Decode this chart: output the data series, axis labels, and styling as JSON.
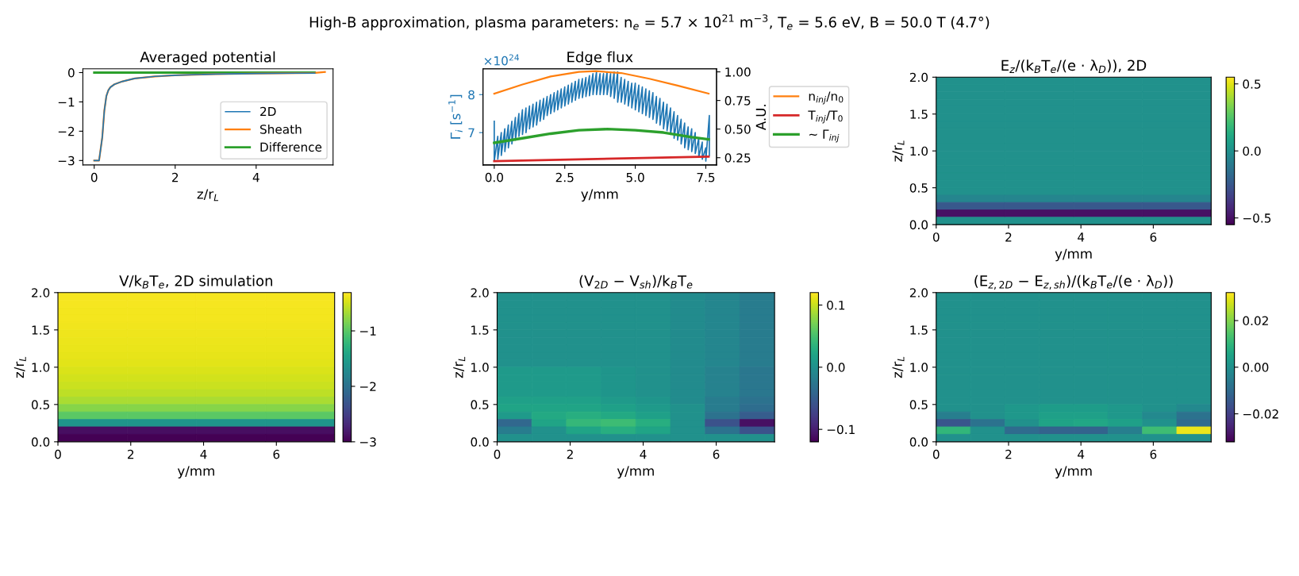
{
  "chart_data": [
    {
      "type": "line",
      "subtitle": "High-B approximation, plasma parameters: n$_{e}$ = 5.7 × 10$^{21}$ m$^{−3}$, T$_{e}$ = 5.6 eV, B = 50.0 T (4.7°)",
      "title": "Averaged potential",
      "xlabel": "z/r$_{L}$",
      "xlim": [
        -0.28,
        5.9
      ],
      "xticks": [
        0,
        2,
        4
      ],
      "ylim": [
        -3.15,
        0.13
      ],
      "yticks": [
        {
          "value": -3,
          "label": "−3"
        },
        {
          "value": -2,
          "label": "−2"
        },
        {
          "value": -1,
          "label": "−1"
        },
        0
      ],
      "legend": "bottom right",
      "grid": false,
      "series": [
        {
          "name": "2D",
          "color": "#1f77b4",
          "x": [
            0,
            0.12,
            0.2,
            0.25,
            0.3,
            0.35,
            0.4,
            0.5,
            0.7,
            1.0,
            1.5,
            2,
            3,
            4,
            5,
            5.45
          ],
          "values": [
            -3,
            -3,
            -2.2,
            -1.3,
            -0.8,
            -0.6,
            -0.5,
            -0.4,
            -0.3,
            -0.2,
            -0.13,
            -0.09,
            -0.05,
            -0.03,
            -0.02,
            -0.02
          ]
        },
        {
          "name": "Sheath",
          "color": "#ff7f0e",
          "x": [
            0,
            0.12,
            0.2,
            0.25,
            0.3,
            0.35,
            0.4,
            0.5,
            0.7,
            1.0,
            1.5,
            2,
            3,
            4,
            5,
            5.45,
            5.7
          ],
          "values": [
            -3,
            -3,
            -2.2,
            -1.3,
            -0.8,
            -0.6,
            -0.5,
            -0.4,
            -0.3,
            -0.2,
            -0.13,
            -0.09,
            -0.05,
            -0.03,
            -0.02,
            -0.01,
            0.02
          ]
        },
        {
          "name": "Difference",
          "color": "#2ca02c",
          "x": [
            0,
            1,
            2,
            3,
            4,
            5,
            5.45
          ],
          "values": [
            0,
            0,
            0,
            0,
            0,
            0,
            0
          ]
        }
      ]
    },
    {
      "type": "line",
      "title": "Edge flux",
      "xlabel": "y/mm",
      "ylabel": "Γ$_{i}$ [s$^{−1}$]",
      "y2label": "A.U.",
      "annotations": [
        "×10$^{24}$"
      ],
      "xlim": [
        -0.4,
        7.88
      ],
      "xticks": [
        {
          "value": 0,
          "label": "0.0"
        },
        {
          "value": 2.5,
          "label": "2.5"
        },
        {
          "value": 5,
          "label": "5.0"
        },
        {
          "value": 7.5,
          "label": "7.5"
        }
      ],
      "ylim": [
        6.15,
        8.68
      ],
      "yticks": [
        7,
        8
      ],
      "y2lim": [
        0.187,
        1.027
      ],
      "y2ticks": [
        {
          "value": 0.25,
          "label": "0.25"
        },
        {
          "value": 0.5,
          "label": "0.50"
        },
        {
          "value": 0.75,
          "label": "0.75"
        },
        {
          "value": 1.0,
          "label": "1.00"
        }
      ],
      "legend": "right",
      "grid": false,
      "series": [
        {
          "color": "#1f77b4",
          "axis": "y",
          "x": [
            0,
            0,
            0.125,
            0.125,
            0.25,
            0.25,
            0.375,
            0.375,
            0.5,
            0.5,
            0.625,
            0.625,
            0.75,
            0.75,
            0.875,
            0.875,
            1.0,
            1.0,
            1.125,
            1.125,
            1.25,
            1.25,
            1.375,
            1.375,
            1.5,
            1.5,
            1.625,
            1.625,
            1.75,
            1.75,
            1.875,
            1.875,
            2.0,
            2.0,
            2.125,
            2.125,
            2.25,
            2.25,
            2.375,
            2.375,
            2.5,
            2.5,
            2.625,
            2.625,
            2.75,
            2.75,
            2.875,
            2.875,
            3.0,
            3.0,
            3.125,
            3.125,
            3.25,
            3.25,
            3.375,
            3.375,
            3.5,
            3.5,
            3.625,
            3.625,
            3.75,
            3.75,
            3.875,
            3.875,
            4.0,
            4.0,
            4.125,
            4.125,
            4.25,
            4.25,
            4.375,
            4.375,
            4.5,
            4.5,
            4.625,
            4.625,
            4.75,
            4.75,
            4.875,
            4.875,
            5.0,
            5.0,
            5.125,
            5.125,
            5.25,
            5.25,
            5.375,
            5.375,
            5.5,
            5.5,
            5.625,
            5.625,
            5.75,
            5.75,
            5.875,
            5.875,
            6.0,
            6.0,
            6.125,
            6.125,
            6.25,
            6.25,
            6.375,
            6.375,
            6.5,
            6.5,
            6.625,
            6.625,
            6.75,
            6.75,
            6.875,
            6.875,
            7.0,
            7.0,
            7.125,
            7.125,
            7.25,
            7.25,
            7.375,
            7.375,
            7.5,
            7.5,
            7.625,
            7.625
          ],
          "values": [
            7.3,
            6.25,
            6.9,
            6.3,
            7.0,
            6.4,
            7.1,
            6.5,
            7.2,
            6.6,
            7.3,
            6.7,
            7.4,
            6.8,
            7.5,
            6.9,
            7.6,
            6.95,
            7.65,
            7.0,
            7.7,
            7.1,
            7.75,
            7.15,
            7.8,
            7.2,
            7.85,
            7.3,
            7.9,
            7.35,
            7.95,
            7.45,
            8.0,
            7.5,
            8.05,
            7.55,
            8.1,
            7.6,
            8.15,
            7.65,
            8.2,
            7.7,
            8.25,
            7.75,
            8.3,
            7.8,
            8.35,
            7.85,
            8.4,
            7.9,
            8.42,
            7.92,
            8.45,
            7.95,
            8.5,
            7.97,
            8.55,
            8.0,
            8.6,
            8.0,
            8.55,
            8.0,
            8.55,
            8.0,
            8.6,
            8.0,
            8.55,
            7.95,
            8.6,
            7.9,
            8.6,
            7.8,
            8.45,
            7.8,
            8.4,
            7.75,
            8.35,
            7.7,
            8.3,
            7.65,
            8.3,
            7.6,
            8.25,
            7.55,
            8.2,
            7.5,
            8.15,
            7.45,
            8.1,
            7.4,
            8.05,
            7.35,
            7.95,
            7.25,
            7.9,
            7.2,
            7.8,
            7.1,
            7.75,
            7.05,
            7.65,
            6.95,
            7.55,
            6.85,
            7.45,
            6.8,
            7.35,
            6.7,
            7.25,
            6.6,
            7.15,
            6.55,
            7.1,
            6.5,
            7.0,
            6.45,
            6.85,
            6.35,
            6.75,
            6.3,
            6.6,
            6.25,
            7.45,
            6.4
          ]
        },
        {
          "name": "n$_{inj}$/n$_{0}$",
          "color": "#ff7f0e",
          "axis": "y2",
          "x": [
            0,
            1,
            2,
            3,
            3.6,
            4.5,
            5.5,
            6.5,
            7.6
          ],
          "values": [
            0.81,
            0.89,
            0.96,
            1.0,
            1.006,
            0.99,
            0.94,
            0.88,
            0.81
          ]
        },
        {
          "name": "T$_{inj}$/T$_{0}$",
          "color": "#d62728",
          "axis": "y2",
          "x": [
            0,
            7.6
          ],
          "values": [
            0.22,
            0.26
          ]
        },
        {
          "name": "∼ Γ$_{inj}$",
          "color": "#2ca02c",
          "axis": "y2",
          "x": [
            0,
            1,
            2,
            3,
            4,
            5,
            6,
            7,
            7.6
          ],
          "values": [
            0.38,
            0.42,
            0.46,
            0.49,
            0.5,
            0.49,
            0.47,
            0.43,
            0.41
          ]
        }
      ]
    },
    {
      "type": "heatmap",
      "title": "E$_{z}$/(k$_{B}$T$_{e}$/(e · λ$_{D}$)), 2D",
      "xlabel": "y/mm",
      "ylabel": "z/r$_{L}$",
      "x": [
        0.95,
        2.85,
        4.75,
        6.65
      ],
      "xlim": [
        0,
        7.6
      ],
      "xticks": [
        0,
        2,
        4,
        6
      ],
      "ylim": [
        0,
        2
      ],
      "yticks": [
        {
          "value": 0,
          "label": "0.0"
        },
        {
          "value": 0.5,
          "label": "0.5"
        },
        {
          "value": 1,
          "label": "1.0"
        },
        {
          "value": 1.5,
          "label": "1.5"
        },
        {
          "value": 2,
          "label": "2.0"
        }
      ],
      "clim": [
        -0.55,
        0.55
      ],
      "cticks": [
        {
          "value": -0.5,
          "label": "−0.5"
        },
        {
          "value": 0,
          "label": "0.0"
        },
        {
          "value": 0.5,
          "label": "0.5"
        }
      ],
      "cells": [
        [
          0,
          0,
          0,
          0
        ],
        [
          0,
          0,
          0,
          0
        ],
        [
          0,
          0,
          0,
          0
        ],
        [
          0,
          0,
          0,
          0
        ],
        [
          0,
          0,
          0,
          0
        ],
        [
          0,
          0,
          0,
          0
        ],
        [
          0,
          0,
          0,
          0
        ],
        [
          0,
          0,
          0,
          0
        ],
        [
          0,
          0,
          0,
          0
        ],
        [
          0,
          0,
          0,
          0
        ],
        [
          0,
          0,
          0,
          0
        ],
        [
          0,
          0,
          0,
          0
        ],
        [
          0,
          0,
          0,
          0
        ],
        [
          0,
          0,
          0,
          0
        ],
        [
          0,
          0,
          0,
          0
        ],
        [
          0,
          0,
          0,
          0
        ],
        [
          -0.05,
          -0.05,
          -0.05,
          -0.05
        ],
        [
          -0.25,
          -0.25,
          -0.25,
          -0.25
        ],
        [
          -0.5,
          -0.5,
          -0.5,
          -0.5
        ],
        [
          0,
          0,
          0,
          0
        ]
      ]
    },
    {
      "type": "heatmap",
      "title": "V/k$_{B}$T$_{e}$, 2D simulation",
      "xlabel": "y/mm",
      "ylabel": "z/r$_{L}$",
      "x": [
        0.95,
        2.85,
        4.75,
        6.65
      ],
      "xlim": [
        0,
        7.6
      ],
      "xticks": [
        0,
        2,
        4,
        6
      ],
      "ylim": [
        0,
        2
      ],
      "yticks": [
        {
          "value": 0,
          "label": "0.0"
        },
        {
          "value": 0.5,
          "label": "0.5"
        },
        {
          "value": 1,
          "label": "1.0"
        },
        {
          "value": 1.5,
          "label": "1.5"
        },
        {
          "value": 2,
          "label": "2.0"
        }
      ],
      "clim": [
        -3,
        -0.31
      ],
      "cticks": [
        {
          "value": -3,
          "label": "−3"
        },
        {
          "value": -2,
          "label": "−2"
        },
        {
          "value": -1,
          "label": "−1"
        }
      ],
      "cells": [
        [
          -0.35,
          -0.35,
          -0.35,
          -0.35
        ],
        [
          -0.35,
          -0.35,
          -0.35,
          -0.35
        ],
        [
          -0.36,
          -0.36,
          -0.36,
          -0.36
        ],
        [
          -0.36,
          -0.36,
          -0.36,
          -0.36
        ],
        [
          -0.37,
          -0.37,
          -0.37,
          -0.37
        ],
        [
          -0.38,
          -0.38,
          -0.38,
          -0.38
        ],
        [
          -0.39,
          -0.39,
          -0.39,
          -0.39
        ],
        [
          -0.4,
          -0.4,
          -0.4,
          -0.4
        ],
        [
          -0.41,
          -0.41,
          -0.41,
          -0.41
        ],
        [
          -0.43,
          -0.43,
          -0.43,
          -0.43
        ],
        [
          -0.46,
          -0.46,
          -0.46,
          -0.46
        ],
        [
          -0.49,
          -0.49,
          -0.49,
          -0.49
        ],
        [
          -0.53,
          -0.53,
          -0.53,
          -0.53
        ],
        [
          -0.58,
          -0.58,
          -0.58,
          -0.58
        ],
        [
          -0.65,
          -0.65,
          -0.65,
          -0.65
        ],
        [
          -0.8,
          -0.8,
          -0.8,
          -0.8
        ],
        [
          -1.0,
          -1.0,
          -1.0,
          -1.0
        ],
        [
          -1.6,
          -1.6,
          -1.6,
          -1.6
        ],
        [
          -2.9,
          -2.9,
          -2.9,
          -2.9
        ],
        [
          -3,
          -3,
          -3,
          -3
        ]
      ]
    },
    {
      "type": "heatmap",
      "title": "(V$_{2D}$ − V$_{sh}$)/k$_{B}$T$_{e}$",
      "xlabel": "y/mm",
      "ylabel": "z/r$_{L}$",
      "x": [
        0.475,
        1.425,
        2.375,
        3.325,
        4.275,
        5.225,
        6.175,
        7.125
      ],
      "xlim": [
        0,
        7.6
      ],
      "xticks": [
        0,
        2,
        4,
        6
      ],
      "ylim": [
        0,
        2
      ],
      "yticks": [
        {
          "value": 0,
          "label": "0.0"
        },
        {
          "value": 0.5,
          "label": "0.5"
        },
        {
          "value": 1,
          "label": "1.0"
        },
        {
          "value": 1.5,
          "label": "1.5"
        },
        {
          "value": 2,
          "label": "2.0"
        }
      ],
      "clim": [
        -0.12,
        0.12
      ],
      "cticks": [
        {
          "value": -0.1,
          "label": "−0.1"
        },
        {
          "value": 0,
          "label": "0.0"
        },
        {
          "value": 0.1,
          "label": "0.1"
        }
      ],
      "cells": [
        [
          0,
          0,
          0,
          0,
          0,
          -0.005,
          -0.01,
          -0.02
        ],
        [
          0,
          0,
          0,
          0,
          0,
          -0.005,
          -0.01,
          -0.02
        ],
        [
          0,
          0,
          0,
          0,
          0,
          -0.005,
          -0.01,
          -0.02
        ],
        [
          0,
          0,
          0,
          0,
          0,
          -0.005,
          -0.01,
          -0.02
        ],
        [
          0,
          0,
          0,
          0,
          0,
          -0.005,
          -0.01,
          -0.02
        ],
        [
          0,
          0,
          0,
          0,
          0,
          -0.005,
          -0.01,
          -0.02
        ],
        [
          0,
          0,
          0,
          0,
          0,
          -0.005,
          -0.01,
          -0.02
        ],
        [
          0,
          0,
          0,
          0,
          0,
          -0.005,
          -0.01,
          -0.02
        ],
        [
          0,
          0,
          0,
          0,
          0,
          -0.005,
          -0.01,
          -0.02
        ],
        [
          0,
          0,
          0,
          0,
          0,
          -0.005,
          -0.01,
          -0.02
        ],
        [
          0.01,
          0.01,
          0.01,
          0.005,
          0,
          -0.005,
          -0.015,
          -0.025
        ],
        [
          0.01,
          0.01,
          0.01,
          0.005,
          0,
          -0.005,
          -0.015,
          -0.025
        ],
        [
          0.01,
          0.01,
          0.01,
          0.005,
          0,
          -0.005,
          -0.015,
          -0.025
        ],
        [
          0.01,
          0.01,
          0.01,
          0.005,
          0,
          -0.005,
          -0.015,
          -0.025
        ],
        [
          0.015,
          0.015,
          0.015,
          0.01,
          0.005,
          -0.005,
          -0.02,
          -0.03
        ],
        [
          0.02,
          0.02,
          0.02,
          0.015,
          0.01,
          0,
          -0.02,
          -0.035
        ],
        [
          0.01,
          0.025,
          0.03,
          0.025,
          0.015,
          0,
          -0.03,
          -0.05
        ],
        [
          -0.04,
          0.02,
          0.04,
          0.045,
          0.03,
          0,
          -0.06,
          -0.11
        ],
        [
          -0.02,
          0,
          0.02,
          0.03,
          0.02,
          0,
          -0.03,
          -0.06
        ],
        [
          0,
          0,
          0,
          0,
          0,
          0,
          0,
          0
        ]
      ]
    },
    {
      "type": "heatmap",
      "title": "(E$_{z,2D}$ − E$_{z,sh}$)/(k$_{B}$T$_{e}$/(e · λ$_{D}$))",
      "xlabel": "y/mm",
      "ylabel": "z/r$_{L}$",
      "x": [
        0.475,
        1.425,
        2.375,
        3.325,
        4.275,
        5.225,
        6.175,
        7.125
      ],
      "xlim": [
        0,
        7.6
      ],
      "xticks": [
        0,
        2,
        4,
        6
      ],
      "ylim": [
        0,
        2
      ],
      "yticks": [
        {
          "value": 0,
          "label": "0.0"
        },
        {
          "value": 0.5,
          "label": "0.5"
        },
        {
          "value": 1,
          "label": "1.0"
        },
        {
          "value": 1.5,
          "label": "1.5"
        },
        {
          "value": 2,
          "label": "2.0"
        }
      ],
      "clim": [
        -0.032,
        0.032
      ],
      "cticks": [
        {
          "value": -0.02,
          "label": "−0.02"
        },
        {
          "value": 0,
          "label": "0.00"
        },
        {
          "value": 0.02,
          "label": "0.02"
        }
      ],
      "cells": [
        [
          0,
          0,
          0,
          0,
          0,
          0,
          0,
          0
        ],
        [
          0,
          0,
          0,
          0,
          0,
          0,
          0,
          0
        ],
        [
          0,
          0,
          0,
          0,
          0,
          0,
          0,
          0
        ],
        [
          0,
          0,
          0,
          0,
          0,
          0,
          0,
          0
        ],
        [
          0,
          0,
          0,
          0,
          0,
          0,
          0,
          0
        ],
        [
          0,
          0,
          0,
          0,
          0,
          0,
          0,
          0
        ],
        [
          0,
          0,
          0,
          0,
          0,
          0,
          0,
          0
        ],
        [
          0,
          0,
          0,
          0,
          0,
          0,
          0,
          0
        ],
        [
          0,
          0,
          0,
          0,
          0,
          0,
          0,
          0
        ],
        [
          0,
          0,
          0,
          0,
          0,
          0,
          0,
          0
        ],
        [
          0,
          0,
          0,
          0,
          0,
          0,
          0,
          0
        ],
        [
          0,
          0,
          0,
          0,
          0,
          0,
          0,
          0
        ],
        [
          0,
          0,
          0,
          0,
          0,
          0,
          0,
          0
        ],
        [
          0,
          0,
          0,
          0,
          0,
          0,
          0,
          0
        ],
        [
          0,
          0,
          0,
          0,
          0,
          0,
          0,
          0
        ],
        [
          0,
          0,
          0.002,
          0.003,
          0.003,
          0.002,
          0,
          -0.002
        ],
        [
          -0.005,
          0,
          0.002,
          0.004,
          0.004,
          0.002,
          -0.002,
          -0.008
        ],
        [
          -0.015,
          -0.008,
          0,
          0.005,
          0.006,
          0.004,
          0,
          -0.01
        ],
        [
          0.01,
          0,
          -0.01,
          -0.012,
          -0.012,
          -0.005,
          0.012,
          0.03
        ],
        [
          0,
          0,
          0,
          0,
          0,
          0,
          0,
          0
        ]
      ]
    }
  ]
}
